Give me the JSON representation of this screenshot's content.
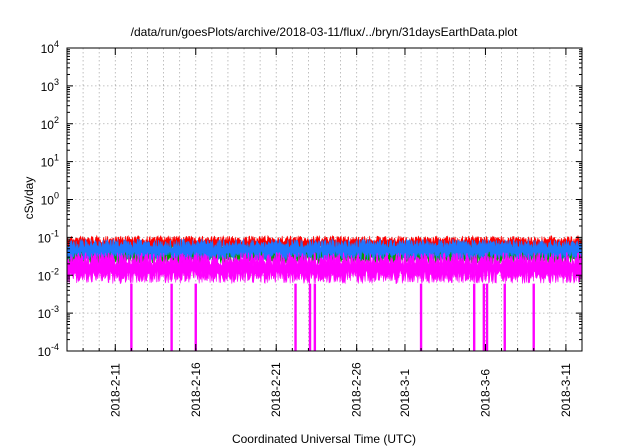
{
  "chart_data": {
    "type": "line",
    "title": "/data/run/goesPlots/archive/2018-03-11/flux/../bryn/31daysEarthData.plot",
    "xlabel": "Coordinated Universal Time (UTC)",
    "ylabel": "cSv/day",
    "yscale": "log",
    "ylim": [
      0.0001,
      10000
    ],
    "xlim": [
      "2018-02-08",
      "2018-03-12"
    ],
    "grid": true,
    "ytick_labels": [
      {
        "base": "10",
        "exp": "-4",
        "value": 0.0001
      },
      {
        "base": "10",
        "exp": "-3",
        "value": 0.001
      },
      {
        "base": "10",
        "exp": "-2",
        "value": 0.01
      },
      {
        "base": "10",
        "exp": "-1",
        "value": 0.1
      },
      {
        "base": "10",
        "exp": "0",
        "value": 1
      },
      {
        "base": "10",
        "exp": "1",
        "value": 10
      },
      {
        "base": "10",
        "exp": "2",
        "value": 100
      },
      {
        "base": "10",
        "exp": "3",
        "value": 1000
      },
      {
        "base": "10",
        "exp": "4",
        "value": 10000
      }
    ],
    "xtick_labels": [
      "2018-2-11",
      "2018-2-16",
      "2018-2-21",
      "2018-2-26",
      "2018-3-1",
      "2018-3-6",
      "2018-3-11"
    ],
    "xtick_dates": [
      "2018-02-11",
      "2018-02-16",
      "2018-02-21",
      "2018-02-26",
      "2018-03-01",
      "2018-03-06",
      "2018-03-11"
    ],
    "series": [
      {
        "color": "#ff0000",
        "band": [
          0.04,
          0.11
        ]
      },
      {
        "color": "#00a000",
        "band": [
          0.02,
          0.06
        ]
      },
      {
        "color": "#1e78ff",
        "band": [
          0.025,
          0.09
        ]
      },
      {
        "color": "#ff00ff",
        "band": [
          0.006,
          0.04
        ]
      }
    ],
    "dropout_dates": [
      "2018-02-12",
      "2018-02-14.5",
      "2018-02-16",
      "2018-02-22.2",
      "2018-02-23.1",
      "2018-02-23.4",
      "2018-03-02",
      "2018-03-05.3",
      "2018-03-05.9",
      "2018-03-06.1",
      "2018-03-07.2",
      "2018-03-09"
    ],
    "dropout_min": 0.0001
  }
}
